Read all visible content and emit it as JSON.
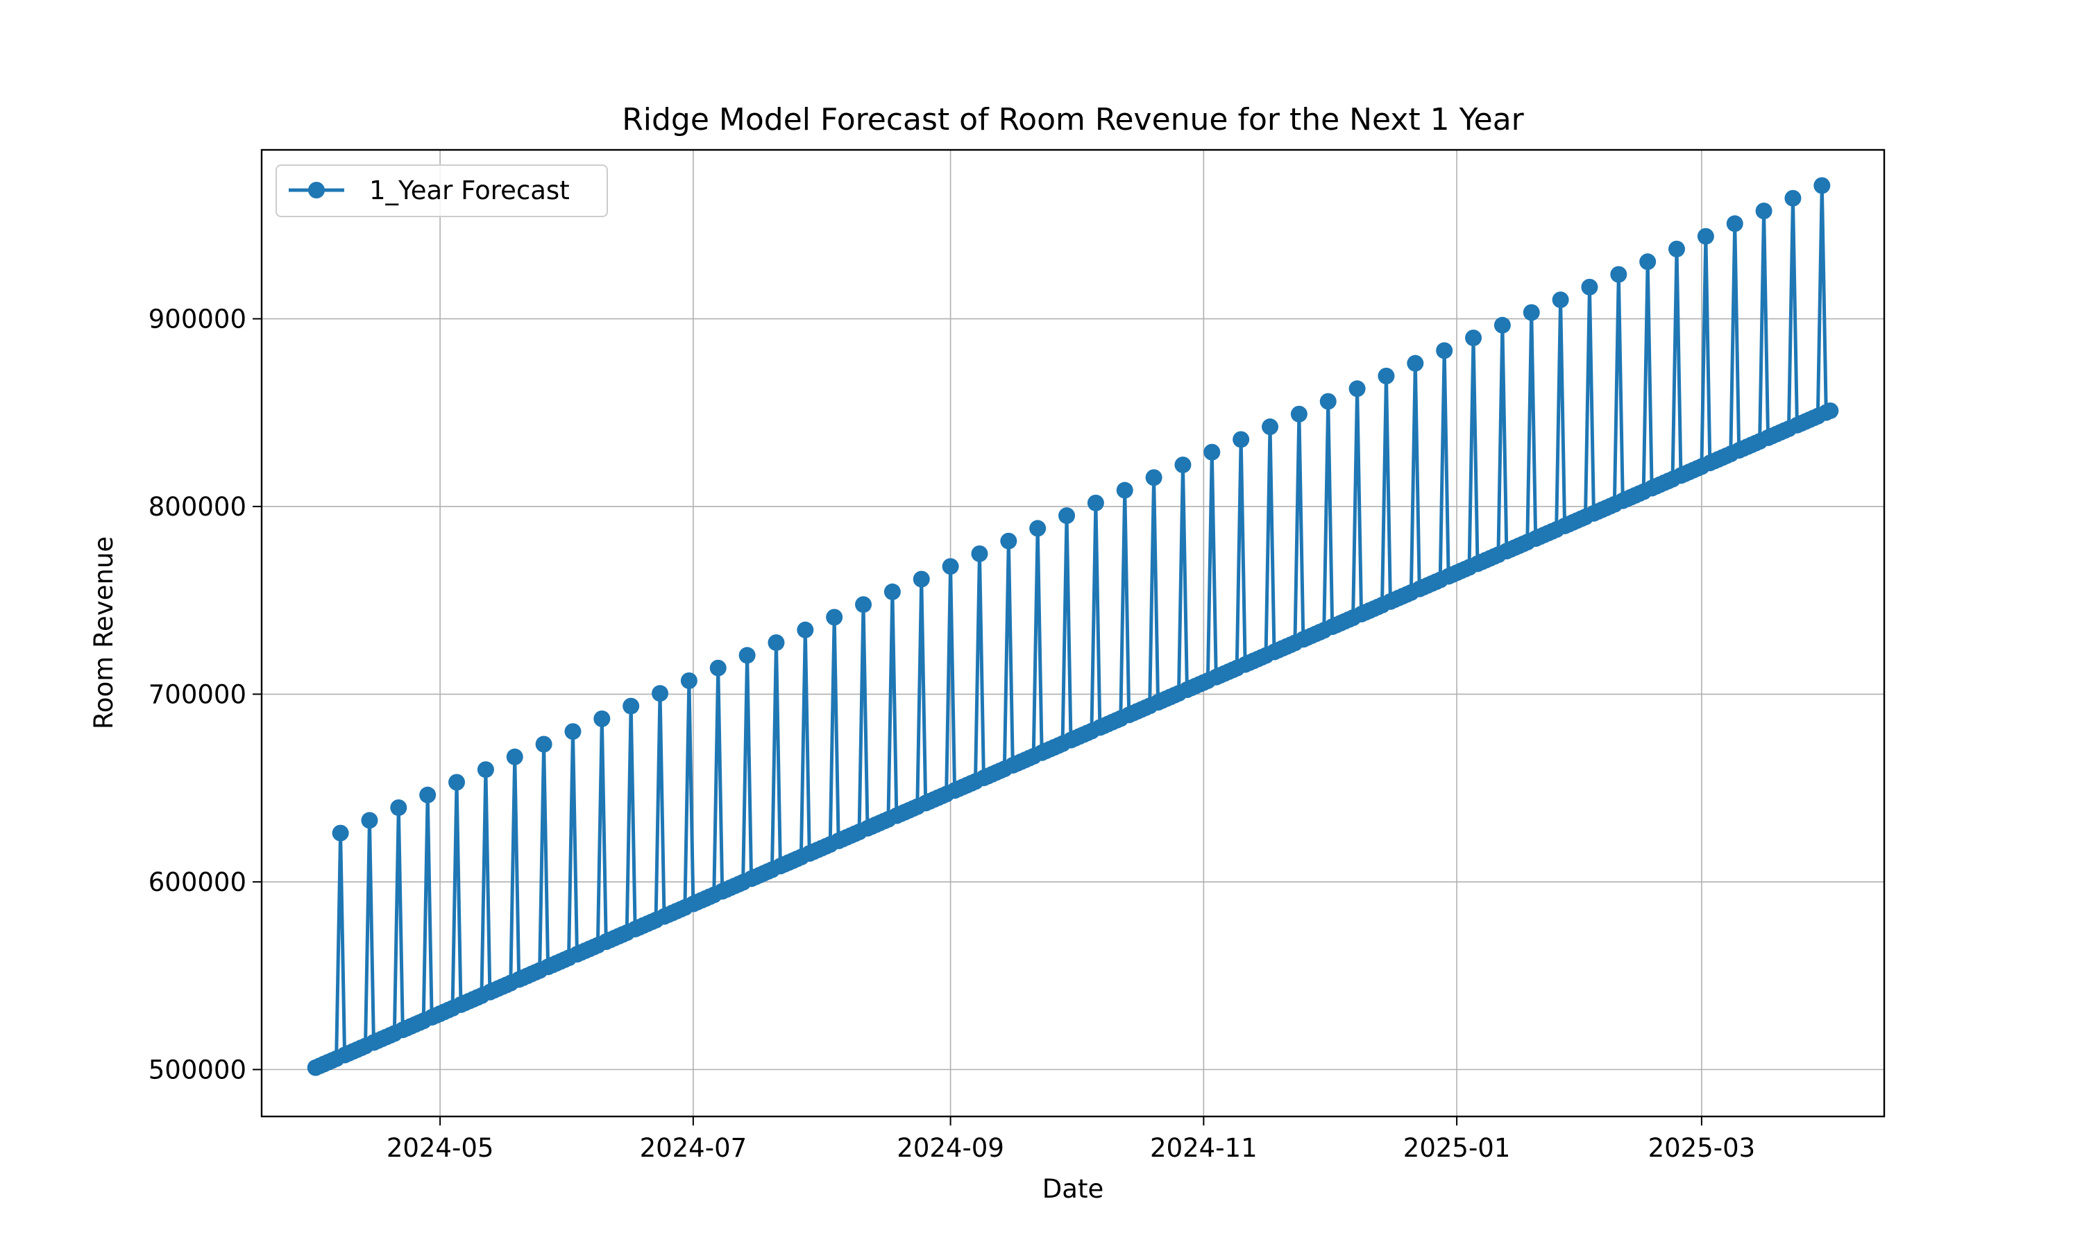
{
  "chart_data": {
    "type": "line",
    "title": "Ridge Model Forecast of Room Revenue for the Next 1 Year",
    "xlabel": "Date",
    "ylabel": "Room Revenue",
    "grid": true,
    "legend_position": "top-left",
    "x_range": [
      "2024-03-19",
      "2025-04-14"
    ],
    "ylim": [
      475000,
      990000
    ],
    "x_ticks": [
      "2024-05",
      "2024-07",
      "2024-09",
      "2024-11",
      "2025-01",
      "2025-03"
    ],
    "y_ticks": [
      "500000",
      "600000",
      "700000",
      "800000",
      "900000"
    ],
    "series": [
      {
        "name": "1_Year Forecast",
        "color": "#1f77b4",
        "marker": "circle",
        "start_date": "2024-04-01",
        "end_date": "2025-04-01",
        "baseline_start_value": 501000,
        "baseline_end_value": 851000,
        "weekly_peak_first_date": "2024-04-07",
        "weekly_peak_first_value": 626000,
        "weekly_peak_last_date": "2025-03-30",
        "weekly_peak_last_value": 971000,
        "peak_interval_days": 7
      }
    ]
  }
}
